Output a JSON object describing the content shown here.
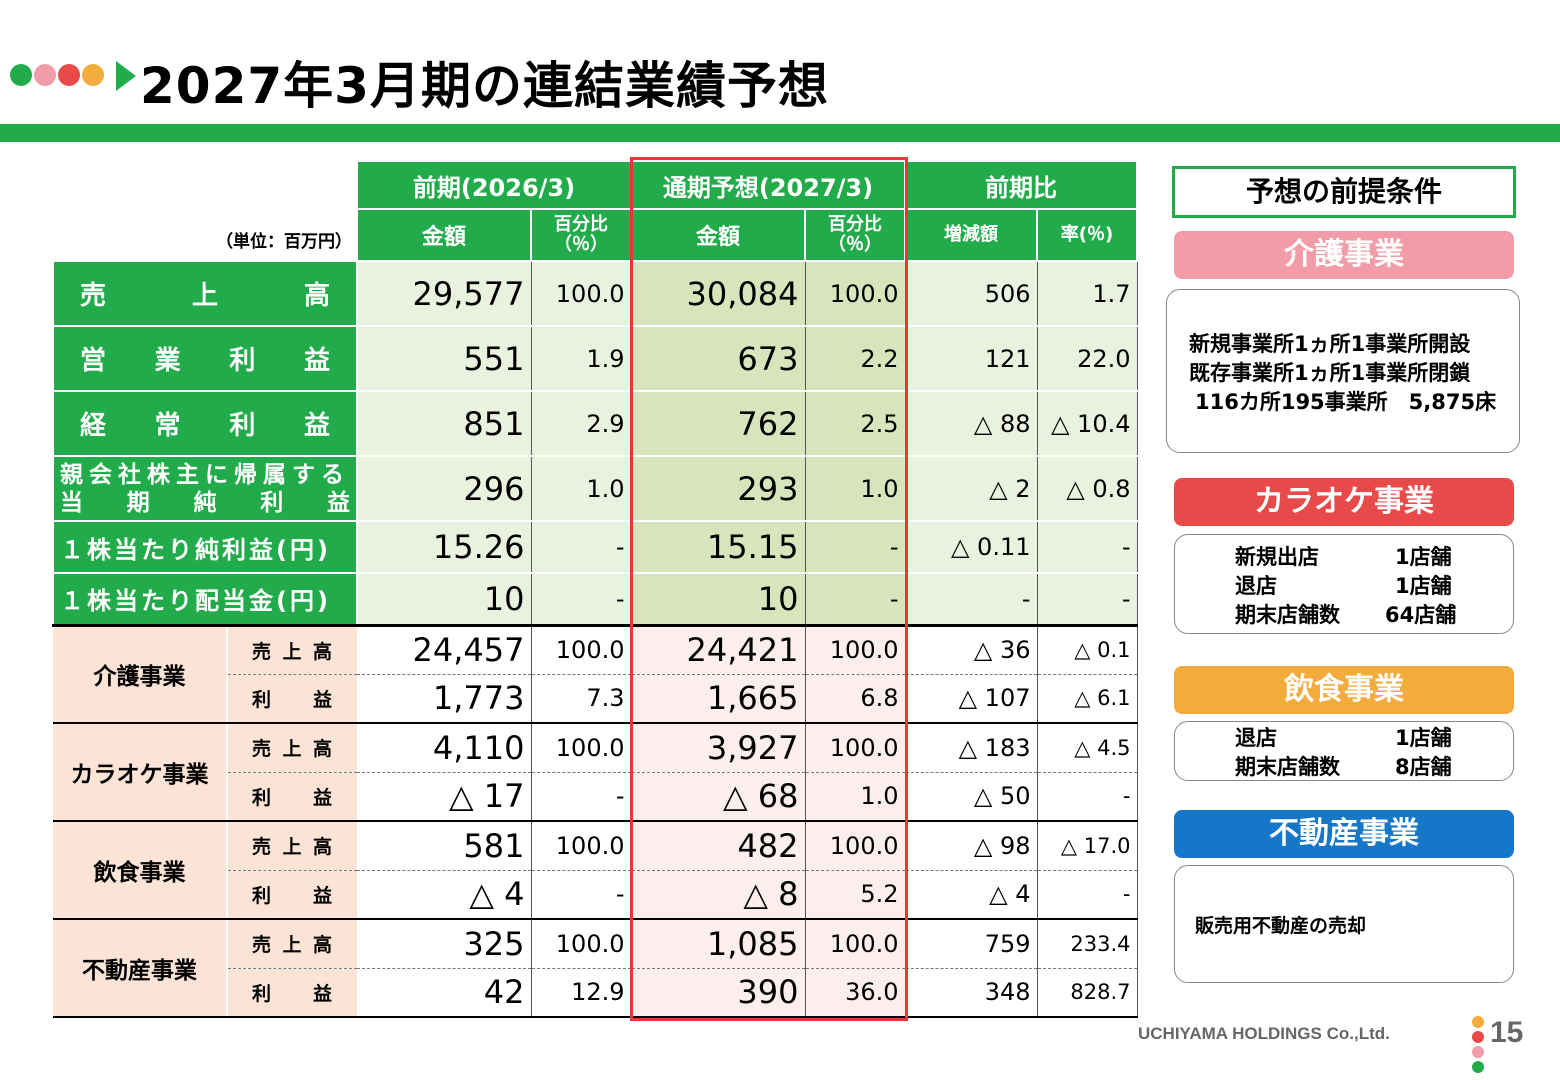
{
  "title": "2027年3月期の連結業績予想",
  "colors": {
    "green": "#22ab4a",
    "pink": "#f29ca8",
    "red": "#e84a4a",
    "orange": "#f3ab3c",
    "blue": "#1676c7",
    "highlight": "#e53935"
  },
  "table": {
    "unit": "（単位：百万円）",
    "headers": {
      "prev": "前期(2026/3)",
      "forecast": "通期予想(2027/3)",
      "compare": "前期比",
      "amount": "金額",
      "pct_line1": "百分比",
      "pct_line2": "（％）",
      "diff": "増減額",
      "rate": "率(％)"
    },
    "rows": [
      {
        "label": [
          "売",
          "上",
          "高"
        ],
        "prev": "29,577",
        "prev_pct": "100.0",
        "fc": "30,084",
        "fc_pct": "100.0",
        "diff": "506",
        "rate": "1.7"
      },
      {
        "label": [
          "営",
          "業",
          "利",
          "益"
        ],
        "prev": "551",
        "prev_pct": "1.9",
        "fc": "673",
        "fc_pct": "2.2",
        "diff": "121",
        "rate": "22.0"
      },
      {
        "label": [
          "経",
          "常",
          "利",
          "益"
        ],
        "prev": "851",
        "prev_pct": "2.9",
        "fc": "762",
        "fc_pct": "2.5",
        "diff": "△ 88",
        "rate": "△ 10.4"
      },
      {
        "label_line1": "親会社株主に帰属する",
        "label_line2": [
          "当",
          "期",
          "純",
          "利",
          "益"
        ],
        "prev": "296",
        "prev_pct": "1.0",
        "fc": "293",
        "fc_pct": "1.0",
        "diff": "△ 2",
        "rate": "△ 0.8"
      },
      {
        "label_text": "１株当たり純利益(円)",
        "prev": "15.26",
        "prev_pct": "-",
        "fc": "15.15",
        "fc_pct": "-",
        "diff": "△ 0.11",
        "rate": "-"
      },
      {
        "label_text": "１株当たり配当金(円)",
        "prev": "10",
        "prev_pct": "-",
        "fc": "10",
        "fc_pct": "-",
        "diff": "-",
        "rate": "-"
      }
    ],
    "segments": [
      {
        "name": "介護事業",
        "sales": {
          "label": [
            "売",
            "上",
            "高"
          ],
          "prev": "24,457",
          "prev_pct": "100.0",
          "fc": "24,421",
          "fc_pct": "100.0",
          "diff": "△ 36",
          "rate": "△ 0.1"
        },
        "profit": {
          "label": [
            "利",
            "益"
          ],
          "prev": "1,773",
          "prev_pct": "7.3",
          "fc": "1,665",
          "fc_pct": "6.8",
          "diff": "△ 107",
          "rate": "△ 6.1"
        }
      },
      {
        "name": "カラオケ事業",
        "sales": {
          "label": [
            "売",
            "上",
            "高"
          ],
          "prev": "4,110",
          "prev_pct": "100.0",
          "fc": "3,927",
          "fc_pct": "100.0",
          "diff": "△ 183",
          "rate": "△ 4.5"
        },
        "profit": {
          "label": [
            "利",
            "益"
          ],
          "prev": "△ 17",
          "prev_pct": "-",
          "fc": "△ 68",
          "fc_pct": "1.0",
          "diff": "△ 50",
          "rate": "-"
        }
      },
      {
        "name": "飲食事業",
        "sales": {
          "label": [
            "売",
            "上",
            "高"
          ],
          "prev": "581",
          "prev_pct": "100.0",
          "fc": "482",
          "fc_pct": "100.0",
          "diff": "△ 98",
          "rate": "△ 17.0"
        },
        "profit": {
          "label": [
            "利",
            "益"
          ],
          "prev": "△ 4",
          "prev_pct": "-",
          "fc": "△ 8",
          "fc_pct": "5.2",
          "diff": "△ 4",
          "rate": "-"
        }
      },
      {
        "name": "不動産事業",
        "sales": {
          "label": [
            "売",
            "上",
            "高"
          ],
          "prev": "325",
          "prev_pct": "100.0",
          "fc": "1,085",
          "fc_pct": "100.0",
          "diff": "759",
          "rate": "233.4"
        },
        "profit": {
          "label": [
            "利",
            "益"
          ],
          "prev": "42",
          "prev_pct": "12.9",
          "fc": "390",
          "fc_pct": "36.0",
          "diff": "348",
          "rate": "828.7"
        }
      }
    ]
  },
  "premises": {
    "heading": "予想の前提条件",
    "care": {
      "title": "介護事業",
      "lines": [
        "新規事業所1ヵ所1事業所開設",
        "既存事業所1ヵ所1事業所閉鎖",
        "116カ所195事業所　5,875床"
      ]
    },
    "karaoke": {
      "title": "カラオケ事業",
      "items": [
        {
          "k": "新規出店",
          "v": "1店舗"
        },
        {
          "k": "退店",
          "v": "1店舗"
        },
        {
          "k": "期末店舗数",
          "v": "64店舗"
        }
      ]
    },
    "food": {
      "title": "飲食事業",
      "items": [
        {
          "k": "退店",
          "v": "1店舗"
        },
        {
          "k": "期末店舗数",
          "v": "8店舗"
        }
      ]
    },
    "realestate": {
      "title": "不動産事業",
      "lines": [
        "販売用不動産の売却"
      ]
    }
  },
  "footer": {
    "company": "UCHIYAMA HOLDINGS Co.,Ltd.",
    "page": "15"
  }
}
